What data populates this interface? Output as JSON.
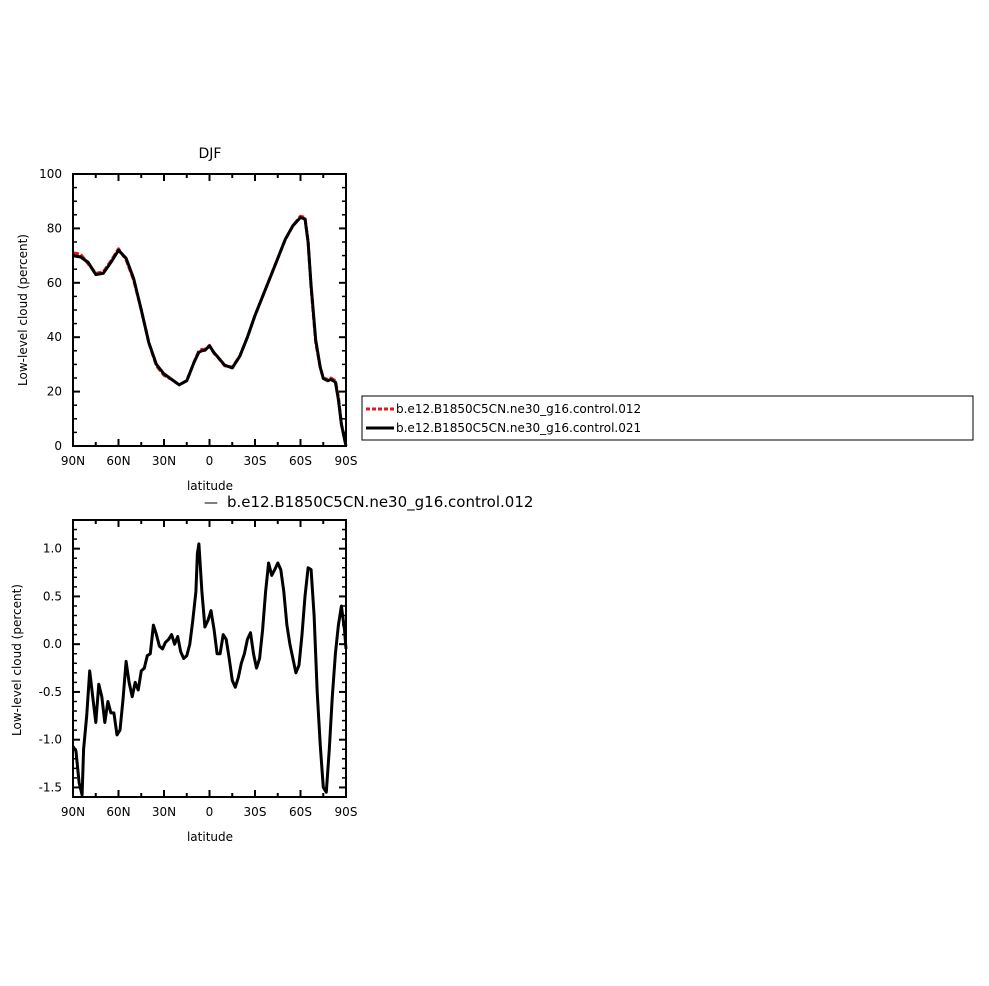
{
  "chart_data": [
    {
      "type": "line",
      "title": "DJF",
      "xlabel": "latitude",
      "ylabel": "Low-level cloud (percent)",
      "xlim": [
        90,
        -90
      ],
      "ylim": [
        0,
        100
      ],
      "x_ticks": [
        {
          "value": 90,
          "label": "90N"
        },
        {
          "value": 60,
          "label": "60N"
        },
        {
          "value": 30,
          "label": "30N"
        },
        {
          "value": 0,
          "label": "0"
        },
        {
          "value": -30,
          "label": "30S"
        },
        {
          "value": -60,
          "label": "60S"
        },
        {
          "value": -90,
          "label": "90S"
        }
      ],
      "y_ticks": [
        {
          "value": 0,
          "label": "0"
        },
        {
          "value": 20,
          "label": "20"
        },
        {
          "value": 40,
          "label": "40"
        },
        {
          "value": 60,
          "label": "60"
        },
        {
          "value": 80,
          "label": "80"
        },
        {
          "value": 100,
          "label": "100"
        }
      ],
      "grid": false,
      "legend_position": "right",
      "series": [
        {
          "name": "b.e12.B1850C5CN.ne30_g16.control.012",
          "color": "#e8141e",
          "dash": true,
          "x": [
            90,
            85,
            80,
            75,
            70,
            65,
            60,
            55,
            50,
            45,
            40,
            35,
            30,
            25,
            20,
            15,
            10,
            7,
            5,
            3,
            0,
            -3,
            -5,
            -10,
            -15,
            -20,
            -25,
            -30,
            -35,
            -40,
            -45,
            -50,
            -55,
            -60,
            -63,
            -65,
            -67,
            -70,
            -73,
            -75,
            -78,
            -80,
            -83,
            -85,
            -87,
            -90
          ],
          "values": [
            71,
            70.5,
            67,
            63.5,
            64,
            68,
            72.5,
            68.5,
            61,
            50,
            38,
            29.5,
            26,
            24.5,
            22.5,
            24,
            31,
            35,
            35.5,
            35.5,
            37,
            34,
            33,
            29.5,
            29,
            33,
            40,
            48,
            55,
            62,
            69,
            76,
            81,
            84.5,
            84,
            75,
            58,
            38,
            29,
            25,
            24.5,
            25,
            24,
            18,
            8,
            0
          ]
        },
        {
          "name": "b.e12.B1850C5CN.ne30_g16.control.021",
          "color": "#000000",
          "dash": false,
          "x": [
            90,
            85,
            80,
            75,
            70,
            65,
            60,
            55,
            50,
            45,
            40,
            35,
            30,
            25,
            20,
            15,
            10,
            7,
            5,
            3,
            0,
            -3,
            -5,
            -10,
            -15,
            -20,
            -25,
            -30,
            -35,
            -40,
            -45,
            -50,
            -55,
            -60,
            -63,
            -65,
            -67,
            -70,
            -73,
            -75,
            -78,
            -80,
            -83,
            -85,
            -87,
            -90
          ],
          "values": [
            70,
            69.5,
            67.5,
            63,
            63.5,
            67.5,
            72,
            69,
            61.5,
            50,
            38,
            30,
            26.5,
            24.5,
            22.5,
            24,
            31,
            34.5,
            35,
            35.2,
            36.8,
            34.3,
            33,
            29.7,
            28.7,
            33,
            40,
            48,
            55,
            62,
            69,
            76,
            81,
            84,
            83.5,
            75,
            59,
            39,
            29,
            24.8,
            24,
            24.5,
            23.5,
            17,
            8,
            0
          ]
        }
      ]
    },
    {
      "type": "line",
      "title": "b.e12.B1850C5CN.ne30_g16.control.012",
      "title_marker": "—",
      "xlabel": "latitude",
      "ylabel": "Low-level cloud (percent)",
      "xlim": [
        90,
        -90
      ],
      "ylim": [
        -1.6,
        1.3
      ],
      "x_ticks": [
        {
          "value": 90,
          "label": "90N"
        },
        {
          "value": 60,
          "label": "60N"
        },
        {
          "value": 30,
          "label": "30N"
        },
        {
          "value": 0,
          "label": "0"
        },
        {
          "value": -30,
          "label": "30S"
        },
        {
          "value": -60,
          "label": "60S"
        },
        {
          "value": -90,
          "label": "90S"
        }
      ],
      "y_ticks": [
        {
          "value": 1.0,
          "label": "1.0"
        },
        {
          "value": 0.5,
          "label": "0.5"
        },
        {
          "value": 0.0,
          "label": "0.0"
        },
        {
          "value": -0.5,
          "label": "-0.5"
        },
        {
          "value": -1.0,
          "label": "-1.0"
        },
        {
          "value": -1.5,
          "label": "-1.5"
        }
      ],
      "grid": false,
      "series": [
        {
          "color": "#000000",
          "x": [
            90,
            88,
            86,
            84,
            83,
            81,
            79,
            77,
            75,
            73,
            71,
            69,
            67,
            65,
            63,
            61,
            59,
            57,
            55,
            53,
            51,
            49,
            47,
            45,
            43,
            41,
            39,
            37,
            35,
            33,
            31,
            29,
            27,
            25,
            23,
            21,
            19,
            17,
            15,
            13,
            11,
            9,
            8,
            7,
            5,
            3,
            1,
            -1,
            -3,
            -5,
            -7,
            -9,
            -11,
            -13,
            -15,
            -17,
            -19,
            -21,
            -23,
            -25,
            -27,
            -29,
            -31,
            -33,
            -35,
            -37,
            -39,
            -41,
            -43,
            -45,
            -47,
            -49,
            -51,
            -53,
            -55,
            -57,
            -59,
            -61,
            -63,
            -65,
            -67,
            -69,
            -71,
            -73,
            -75,
            -77,
            -79,
            -81,
            -83,
            -85,
            -87,
            -89,
            -90
          ],
          "values": [
            -1.07,
            -1.12,
            -1.45,
            -1.58,
            -1.1,
            -0.75,
            -0.28,
            -0.55,
            -0.82,
            -0.42,
            -0.55,
            -0.82,
            -0.6,
            -0.72,
            -0.72,
            -0.95,
            -0.9,
            -0.58,
            -0.18,
            -0.4,
            -0.55,
            -0.4,
            -0.48,
            -0.28,
            -0.25,
            -0.12,
            -0.1,
            0.2,
            0.1,
            -0.02,
            -0.05,
            0.02,
            0.05,
            0.1,
            0.0,
            0.08,
            -0.08,
            -0.15,
            -0.12,
            0.0,
            0.25,
            0.55,
            0.95,
            1.05,
            0.55,
            0.18,
            0.25,
            0.35,
            0.15,
            -0.1,
            -0.1,
            0.1,
            0.05,
            -0.15,
            -0.38,
            -0.45,
            -0.35,
            -0.2,
            -0.1,
            0.05,
            0.12,
            -0.1,
            -0.25,
            -0.15,
            0.15,
            0.55,
            0.85,
            0.72,
            0.78,
            0.85,
            0.78,
            0.55,
            0.2,
            0.0,
            -0.15,
            -0.3,
            -0.22,
            0.1,
            0.5,
            0.8,
            0.78,
            0.3,
            -0.5,
            -1.05,
            -1.5,
            -1.55,
            -1.1,
            -0.55,
            -0.1,
            0.2,
            0.4,
            0.15,
            -0.05
          ]
        }
      ]
    }
  ]
}
